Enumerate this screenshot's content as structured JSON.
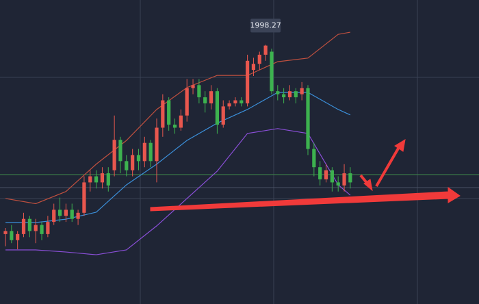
{
  "chart_data": {
    "type": "candlestick",
    "annotation": "1998.27",
    "ylim": [
      1913,
      2013
    ],
    "up_color": "#e8574e",
    "down_color": "#3db24f",
    "candles": [
      {
        "o": 1936,
        "h": 1938,
        "l": 1932,
        "c": 1937
      },
      {
        "o": 1937,
        "h": 1939,
        "l": 1933,
        "c": 1934
      },
      {
        "o": 1934,
        "h": 1937,
        "l": 1931,
        "c": 1936
      },
      {
        "o": 1936,
        "h": 1943,
        "l": 1935,
        "c": 1941
      },
      {
        "o": 1941,
        "h": 1942,
        "l": 1935,
        "c": 1937
      },
      {
        "o": 1937,
        "h": 1941,
        "l": 1933,
        "c": 1939
      },
      {
        "o": 1939,
        "h": 1940,
        "l": 1934,
        "c": 1936
      },
      {
        "o": 1936,
        "h": 1942,
        "l": 1935,
        "c": 1940
      },
      {
        "o": 1940,
        "h": 1946,
        "l": 1939,
        "c": 1944
      },
      {
        "o": 1944,
        "h": 1948,
        "l": 1940,
        "c": 1942
      },
      {
        "o": 1942,
        "h": 1946,
        "l": 1940,
        "c": 1944
      },
      {
        "o": 1944,
        "h": 1946,
        "l": 1940,
        "c": 1941
      },
      {
        "o": 1941,
        "h": 1944,
        "l": 1939,
        "c": 1943
      },
      {
        "o": 1943,
        "h": 1955,
        "l": 1942,
        "c": 1953
      },
      {
        "o": 1953,
        "h": 1957,
        "l": 1950,
        "c": 1955
      },
      {
        "o": 1955,
        "h": 1957,
        "l": 1951,
        "c": 1953
      },
      {
        "o": 1953,
        "h": 1958,
        "l": 1951,
        "c": 1956
      },
      {
        "o": 1956,
        "h": 1958,
        "l": 1950,
        "c": 1952
      },
      {
        "o": 1957,
        "h": 1975,
        "l": 1955,
        "c": 1967
      },
      {
        "o": 1967,
        "h": 1968,
        "l": 1956,
        "c": 1960
      },
      {
        "o": 1960,
        "h": 1962,
        "l": 1955,
        "c": 1957
      },
      {
        "o": 1957,
        "h": 1964,
        "l": 1955,
        "c": 1962
      },
      {
        "o": 1962,
        "h": 1964,
        "l": 1957,
        "c": 1960
      },
      {
        "o": 1960,
        "h": 1968,
        "l": 1958,
        "c": 1966
      },
      {
        "o": 1966,
        "h": 1967,
        "l": 1958,
        "c": 1960
      },
      {
        "o": 1960,
        "h": 1974,
        "l": 1953,
        "c": 1971
      },
      {
        "o": 1971,
        "h": 1982,
        "l": 1968,
        "c": 1980
      },
      {
        "o": 1980,
        "h": 1981,
        "l": 1970,
        "c": 1972
      },
      {
        "o": 1972,
        "h": 1974,
        "l": 1969,
        "c": 1971
      },
      {
        "o": 1971,
        "h": 1977,
        "l": 1970,
        "c": 1975
      },
      {
        "o": 1975,
        "h": 1987,
        "l": 1973,
        "c": 1984
      },
      {
        "o": 1984,
        "h": 1987,
        "l": 1982,
        "c": 1985
      },
      {
        "o": 1985,
        "h": 1987,
        "l": 1979,
        "c": 1981
      },
      {
        "o": 1981,
        "h": 1983,
        "l": 1976,
        "c": 1979
      },
      {
        "o": 1979,
        "h": 1985,
        "l": 1977,
        "c": 1983
      },
      {
        "o": 1983,
        "h": 1984,
        "l": 1969,
        "c": 1972
      },
      {
        "o": 1972,
        "h": 1980,
        "l": 1971,
        "c": 1978
      },
      {
        "o": 1978,
        "h": 1980,
        "l": 1977,
        "c": 1979
      },
      {
        "o": 1979,
        "h": 1981,
        "l": 1978,
        "c": 1980
      },
      {
        "o": 1980,
        "h": 1981,
        "l": 1978,
        "c": 1979
      },
      {
        "o": 1979,
        "h": 1995,
        "l": 1978,
        "c": 1993
      },
      {
        "o": 1990,
        "h": 1994,
        "l": 1988,
        "c": 1992
      },
      {
        "o": 1992,
        "h": 1996,
        "l": 1990,
        "c": 1995
      },
      {
        "o": 1995,
        "h": 1998.27,
        "l": 1993,
        "c": 1998
      },
      {
        "o": 1996,
        "h": 1997,
        "l": 1982,
        "c": 1983
      },
      {
        "o": 1983,
        "h": 1985,
        "l": 1980,
        "c": 1982
      },
      {
        "o": 1982,
        "h": 1984,
        "l": 1979,
        "c": 1981
      },
      {
        "o": 1981,
        "h": 1985,
        "l": 1980,
        "c": 1983
      },
      {
        "o": 1983,
        "h": 1984,
        "l": 1979,
        "c": 1981
      },
      {
        "o": 1982,
        "h": 1986,
        "l": 1980,
        "c": 1984
      },
      {
        "o": 1984,
        "h": 1985,
        "l": 1962,
        "c": 1964
      },
      {
        "o": 1964,
        "h": 1966,
        "l": 1955,
        "c": 1958
      },
      {
        "o": 1958,
        "h": 1960,
        "l": 1952,
        "c": 1954
      },
      {
        "o": 1954,
        "h": 1959,
        "l": 1953,
        "c": 1957
      },
      {
        "o": 1957,
        "h": 1958,
        "l": 1950,
        "c": 1953
      },
      {
        "o": 1953,
        "h": 1955,
        "l": 1950,
        "c": 1952
      },
      {
        "o": 1952,
        "h": 1959,
        "l": 1950,
        "c": 1956
      },
      {
        "o": 1956,
        "h": 1958,
        "l": 1951,
        "c": 1953
      }
    ],
    "x": [
      0,
      5,
      10,
      15,
      20,
      25,
      30,
      35,
      40,
      45,
      50,
      55,
      57
    ],
    "series": [
      {
        "color": "#c0503f",
        "values": [
          1947.7,
          1946,
          1950,
          1959,
          1966.8,
          1977,
          1984.2,
          1988.2,
          1988.2,
          1992.7,
          1993.9,
          2001.7,
          2002.4
        ]
      },
      {
        "color": "#3b8fd9",
        "values": [
          1939.8,
          1939.8,
          1940.9,
          1943.2,
          1952.2,
          1959,
          1966.8,
          1972.5,
          1977,
          1982.6,
          1982.6,
          1977,
          1975.2
        ]
      },
      {
        "color": "#8a4fd8",
        "values": [
          1930.8,
          1930.8,
          1930.1,
          1929.2,
          1930.8,
          1938.7,
          1947.7,
          1956.7,
          1969.1,
          1970.7,
          1969.1,
          1952.2,
          1948.8
        ]
      }
    ]
  }
}
